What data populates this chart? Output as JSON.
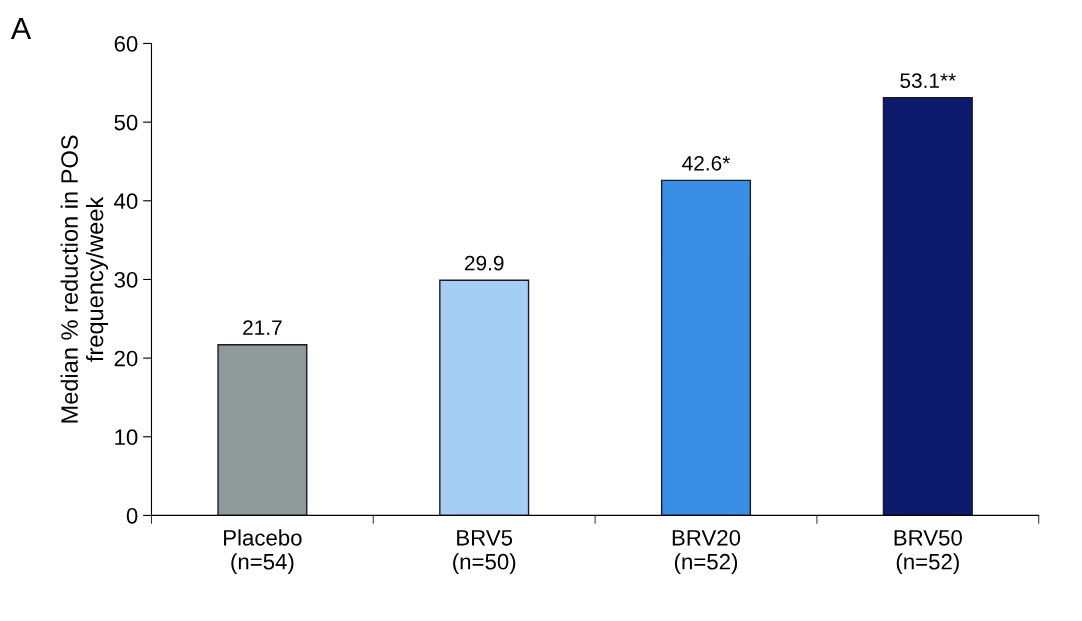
{
  "chart_data": {
    "type": "bar",
    "ylabel": "Median % reduction in POS\nfrequency/week",
    "categories": [
      "Placebo\n(n=54)",
      "BRV5\n(n=50)",
      "BRV20\n(n=52)",
      "BRV50\n(n=52)"
    ],
    "values": [
      21.7,
      29.9,
      42.6,
      53.1
    ],
    "value_labels": [
      "21.7",
      "29.9",
      "42.6*",
      "53.1**"
    ],
    "colors": [
      "#8e9999",
      "#a6cdf4",
      "#3a8ee6",
      "#0c1a6b"
    ],
    "ylim": [
      0,
      60
    ],
    "yticks": [
      0,
      10,
      20,
      30,
      40,
      50,
      60
    ],
    "grid": false,
    "annotations": [
      "A"
    ]
  }
}
